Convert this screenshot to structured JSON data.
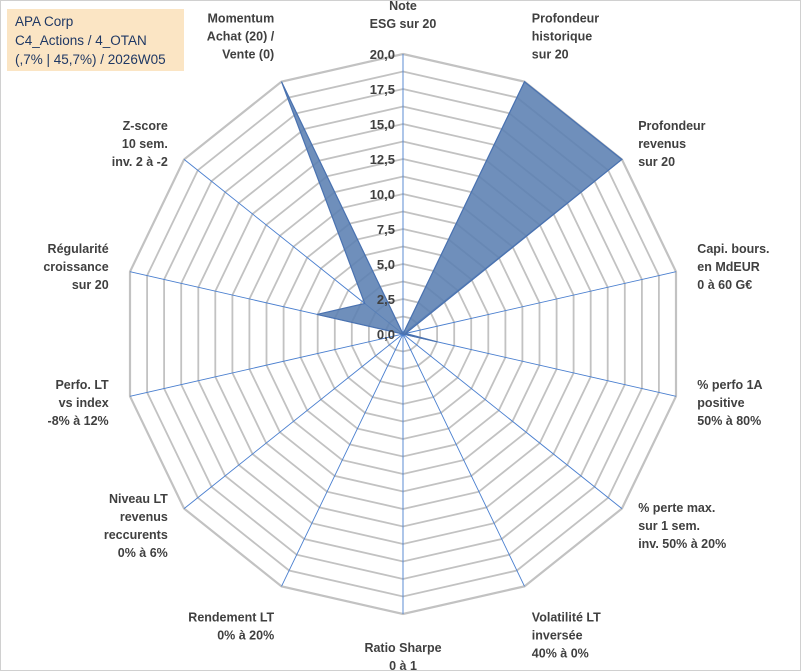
{
  "title_box": {
    "line1": "APA Corp",
    "line2": "C4_Actions / 4_OTAN",
    "line3": "(,7% | 45,7%) / 2026W05"
  },
  "colors": {
    "area_fill": "#5b80b2",
    "area_stroke": "#4a72b0",
    "spoke": "#4a7fcf",
    "ring": "#c2c2c2",
    "title_bg": "#fbe5c4",
    "title_text": "#1f3864"
  },
  "chart_data": {
    "type": "radar",
    "rmin": 0,
    "rmax": 20,
    "ring_step": 1.25,
    "ticks": [
      "0,0",
      "2,5",
      "5,0",
      "7,5",
      "10,0",
      "12,5",
      "15,0",
      "17,5",
      "20,0"
    ],
    "tick_values": [
      0,
      2.5,
      5,
      7.5,
      10,
      12.5,
      15,
      17.5,
      20
    ],
    "axes": [
      {
        "label": [
          "Note",
          "ESG sur 20"
        ],
        "value": 0
      },
      {
        "label": [
          "Profondeur",
          "historique",
          "sur 20"
        ],
        "value": 20
      },
      {
        "label": [
          "Profondeur",
          "revenus",
          "sur 20"
        ],
        "value": 20
      },
      {
        "label": [
          "Capi. bours.",
          "en MdEUR",
          "0 à 60 G€"
        ],
        "value": 0.2
      },
      {
        "label": [
          "% perfo 1A",
          "positive",
          "50% à 80%"
        ],
        "value": 2.5
      },
      {
        "label": [
          "% perte max.",
          "sur 1 sem.",
          "inv. 50% à 20%"
        ],
        "value": 0
      },
      {
        "label": [
          "Volatilité LT",
          "inversée",
          "40% à 0%"
        ],
        "value": 0
      },
      {
        "label": [
          "Ratio Sharpe",
          "0 à 1"
        ],
        "value": 0
      },
      {
        "label": [
          "Rendement LT",
          "0% à 20%"
        ],
        "value": 0
      },
      {
        "label": [
          "Niveau LT",
          "revenus",
          "reccurents",
          "0% à 6%"
        ],
        "value": 0
      },
      {
        "label": [
          "Perfo. LT",
          "vs index",
          "-8% à 12%"
        ],
        "value": 0
      },
      {
        "label": [
          "Régularité",
          "croissance",
          "sur 20"
        ],
        "value": 6.3
      },
      {
        "label": [
          "Z-score",
          "10 sem.",
          "inv. 2 à -2"
        ],
        "value": 3.5
      },
      {
        "label": [
          "Momentum",
          "Achat (20) /",
          "Vente (0)"
        ],
        "value": 20
      }
    ]
  }
}
